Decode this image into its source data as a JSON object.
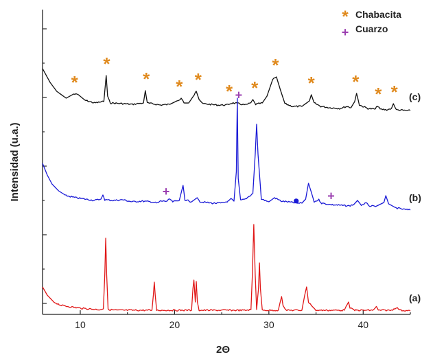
{
  "chart_data": {
    "type": "line",
    "xlabel": "2Θ",
    "ylabel": "Intensidad (u.a.)",
    "xlim": [
      6,
      45
    ],
    "x_ticks": [
      10,
      20,
      30,
      40
    ],
    "y_ticks_shown": false,
    "grid": false,
    "legend_position": "top-right",
    "legend": [
      {
        "label": "Chabacita",
        "symbol": "*",
        "color": "#e08a1e"
      },
      {
        "label": "Cuarzo",
        "symbol": "+",
        "color": "#9b3fb0"
      }
    ],
    "series": [
      {
        "name": "(c)",
        "color": "#111111",
        "baseline": 150,
        "points": [
          [
            6,
            100
          ],
          [
            6.8,
            120
          ],
          [
            7.5,
            133
          ],
          [
            8.5,
            143
          ],
          [
            9.3,
            137
          ],
          [
            9.8,
            138
          ],
          [
            10.5,
            146
          ],
          [
            11.5,
            150
          ],
          [
            12.5,
            148
          ],
          [
            12.75,
            110
          ],
          [
            12.9,
            140
          ],
          [
            13.2,
            150
          ],
          [
            14.5,
            151
          ],
          [
            15.5,
            152
          ],
          [
            16.7,
            150
          ],
          [
            16.9,
            132
          ],
          [
            17.1,
            150
          ],
          [
            18.5,
            153
          ],
          [
            19.5,
            152
          ],
          [
            20.4,
            146
          ],
          [
            20.7,
            143
          ],
          [
            21.0,
            149
          ],
          [
            21.5,
            150
          ],
          [
            22.1,
            138
          ],
          [
            22.3,
            133
          ],
          [
            22.6,
            145
          ],
          [
            23.0,
            151
          ],
          [
            24.5,
            153
          ],
          [
            25.5,
            153
          ],
          [
            26.1,
            150
          ],
          [
            26.8,
            151
          ],
          [
            27.5,
            153
          ],
          [
            28.1,
            150
          ],
          [
            28.3,
            145
          ],
          [
            28.6,
            152
          ],
          [
            29.3,
            150
          ],
          [
            29.8,
            140
          ],
          [
            30.4,
            116
          ],
          [
            30.8,
            112
          ],
          [
            31.2,
            130
          ],
          [
            31.7,
            151
          ],
          [
            32.5,
            155
          ],
          [
            33.5,
            155
          ],
          [
            34.3,
            147
          ],
          [
            34.5,
            138
          ],
          [
            34.8,
            150
          ],
          [
            35.5,
            155
          ],
          [
            36.5,
            157
          ],
          [
            37.5,
            158
          ],
          [
            38.3,
            155
          ],
          [
            38.7,
            157
          ],
          [
            39.1,
            148
          ],
          [
            39.3,
            136
          ],
          [
            39.6,
            153
          ],
          [
            40.5,
            158
          ],
          [
            41.3,
            159
          ],
          [
            41.5,
            154
          ],
          [
            41.8,
            159
          ],
          [
            42.5,
            160
          ],
          [
            43.0,
            158
          ],
          [
            43.2,
            151
          ],
          [
            43.5,
            160
          ],
          [
            44.5,
            161
          ],
          [
            45,
            161
          ]
        ]
      },
      {
        "name": "(b)",
        "color": "#1a1ad6",
        "baseline": 292,
        "points": [
          [
            6,
            238
          ],
          [
            6.5,
            255
          ],
          [
            7,
            268
          ],
          [
            7.7,
            278
          ],
          [
            8.5,
            285
          ],
          [
            9.5,
            288
          ],
          [
            10.5,
            290
          ],
          [
            11.5,
            292
          ],
          [
            12.2,
            290
          ],
          [
            12.4,
            284
          ],
          [
            12.6,
            291
          ],
          [
            13.5,
            292
          ],
          [
            14.5,
            291
          ],
          [
            15.5,
            294
          ],
          [
            16.5,
            293
          ],
          [
            17.5,
            294
          ],
          [
            18.2,
            296
          ],
          [
            18.5,
            293
          ],
          [
            19.2,
            293
          ],
          [
            19.5,
            290
          ],
          [
            19.8,
            294
          ],
          [
            20.5,
            292
          ],
          [
            20.9,
            270
          ],
          [
            21.1,
            291
          ],
          [
            21.8,
            294
          ],
          [
            22.4,
            288
          ],
          [
            22.7,
            294
          ],
          [
            24,
            296
          ],
          [
            25,
            296
          ],
          [
            25.7,
            293
          ],
          [
            26.0,
            290
          ],
          [
            26.3,
            293
          ],
          [
            26.55,
            250
          ],
          [
            26.65,
            143
          ],
          [
            26.75,
            260
          ],
          [
            27.0,
            292
          ],
          [
            27.5,
            290
          ],
          [
            28.0,
            285
          ],
          [
            28.3,
            282
          ],
          [
            28.55,
            225
          ],
          [
            28.7,
            181
          ],
          [
            28.85,
            225
          ],
          [
            29.2,
            290
          ],
          [
            30,
            294
          ],
          [
            30.6,
            288
          ],
          [
            31.3,
            293
          ],
          [
            32,
            294
          ],
          [
            33,
            296
          ],
          [
            33.5,
            296
          ],
          [
            33.9,
            290
          ],
          [
            34.2,
            267
          ],
          [
            34.5,
            280
          ],
          [
            34.8,
            294
          ],
          [
            35.3,
            291
          ],
          [
            35.6,
            296
          ],
          [
            36.5,
            298
          ],
          [
            37.5,
            299
          ],
          [
            38.5,
            300
          ],
          [
            39.0,
            298
          ],
          [
            39.4,
            292
          ],
          [
            39.8,
            299
          ],
          [
            40.3,
            296
          ],
          [
            40.7,
            300
          ],
          [
            41.3,
            301
          ],
          [
            42.2,
            295
          ],
          [
            42.4,
            285
          ],
          [
            42.7,
            297
          ],
          [
            43.5,
            303
          ],
          [
            44.3,
            305
          ],
          [
            45,
            306
          ]
        ]
      },
      {
        "name": "(a)",
        "color": "#e01616",
        "baseline": 453,
        "points": [
          [
            6,
            418
          ],
          [
            6.5,
            430
          ],
          [
            7.2,
            440
          ],
          [
            8,
            445
          ],
          [
            9,
            447
          ],
          [
            10,
            449
          ],
          [
            11,
            450
          ],
          [
            12,
            451
          ],
          [
            12.45,
            450
          ],
          [
            12.6,
            400
          ],
          [
            12.7,
            347
          ],
          [
            12.8,
            400
          ],
          [
            12.95,
            451
          ],
          [
            14,
            452
          ],
          [
            15,
            452
          ],
          [
            16,
            452
          ],
          [
            17,
            452
          ],
          [
            17.6,
            452
          ],
          [
            17.75,
            430
          ],
          [
            17.85,
            411
          ],
          [
            17.95,
            430
          ],
          [
            18.1,
            452
          ],
          [
            19,
            452
          ],
          [
            20,
            452
          ],
          [
            21,
            452
          ],
          [
            21.8,
            452
          ],
          [
            21.95,
            420
          ],
          [
            22.05,
            408
          ],
          [
            22.2,
            440
          ],
          [
            22.3,
            410
          ],
          [
            22.42,
            440
          ],
          [
            22.6,
            452
          ],
          [
            23.5,
            452
          ],
          [
            24.5,
            452
          ],
          [
            25.5,
            452
          ],
          [
            26.5,
            452
          ],
          [
            27.5,
            452
          ],
          [
            28.1,
            451
          ],
          [
            28.25,
            400
          ],
          [
            28.4,
            327
          ],
          [
            28.55,
            400
          ],
          [
            28.7,
            451
          ],
          [
            28.9,
            420
          ],
          [
            29.0,
            383
          ],
          [
            29.1,
            420
          ],
          [
            29.3,
            452
          ],
          [
            30,
            452
          ],
          [
            31.0,
            452
          ],
          [
            31.2,
            440
          ],
          [
            31.35,
            432
          ],
          [
            31.5,
            445
          ],
          [
            31.8,
            452
          ],
          [
            32.5,
            452
          ],
          [
            33.5,
            452
          ],
          [
            33.8,
            430
          ],
          [
            34.0,
            418
          ],
          [
            34.2,
            440
          ],
          [
            34.5,
            445
          ],
          [
            35,
            452
          ],
          [
            36,
            452
          ],
          [
            37,
            452
          ],
          [
            38.0,
            452
          ],
          [
            38.3,
            443
          ],
          [
            38.45,
            440
          ],
          [
            38.6,
            448
          ],
          [
            39,
            452
          ],
          [
            40,
            452
          ],
          [
            41,
            452
          ],
          [
            41.4,
            447
          ],
          [
            41.6,
            452
          ],
          [
            42,
            452
          ],
          [
            43,
            452
          ],
          [
            43.5,
            448
          ],
          [
            44,
            452
          ],
          [
            45,
            453
          ]
        ]
      }
    ],
    "series_labels": [
      "(c)",
      "(b)",
      "(a)"
    ],
    "markers": {
      "chabacita": [
        {
          "x": 9.4
        },
        {
          "x": 12.8
        },
        {
          "x": 17.0
        },
        {
          "x": 20.5
        },
        {
          "x": 22.5
        },
        {
          "x": 25.8
        },
        {
          "x": 28.5
        },
        {
          "x": 30.7
        },
        {
          "x": 34.5
        },
        {
          "x": 39.2
        },
        {
          "x": 41.6
        },
        {
          "x": 43.3
        }
      ],
      "cuarzo": [
        {
          "x": 26.8,
          "series": "(c)"
        },
        {
          "x": 19.1,
          "series": "(b)"
        },
        {
          "x": 36.6,
          "series": "(b)"
        }
      ],
      "dot": [
        {
          "x": 32.9,
          "series": "(b)"
        }
      ]
    }
  }
}
